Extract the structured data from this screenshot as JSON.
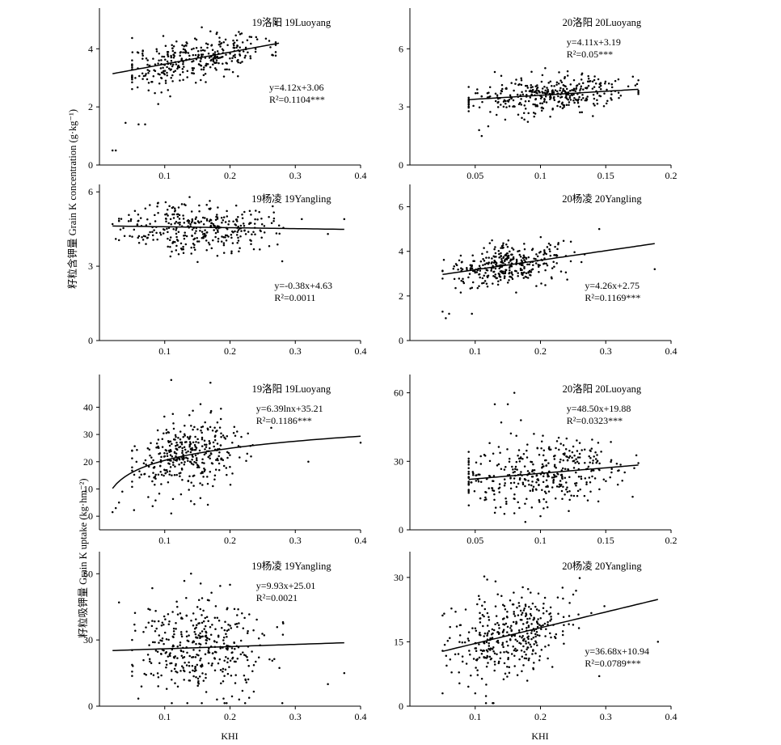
{
  "labels": {
    "y_top": "籽粒含钾量 Grain K concentration (g·kg⁻¹)",
    "y_bottom": "籽粒吸钾量 Grain K uptake (kg·hm⁻²)",
    "x_left": "KHI",
    "x_right": "KHI"
  },
  "chart_data": [
    {
      "type": "scatter",
      "title": "19洛阳 19Luoyang",
      "eq1": "y=4.12x+3.06",
      "eq2": "R²=0.1104***",
      "fit": "linear",
      "slope": 4.12,
      "intercept": 3.06,
      "fit_range": [
        0.02,
        0.275
      ],
      "xlim": [
        0.0,
        0.4
      ],
      "ylim": [
        0,
        5.4
      ],
      "xticks": [
        0.1,
        0.2,
        0.3,
        0.4
      ],
      "yticks": [
        0,
        2,
        4
      ],
      "cluster": {
        "n": 340,
        "cx": 0.145,
        "sx": 0.055,
        "x_range": [
          0.05,
          0.27
        ],
        "sy": 0.38,
        "seed": 11
      },
      "outliers": [
        [
          0.02,
          0.5
        ],
        [
          0.025,
          0.5
        ],
        [
          0.04,
          1.45
        ],
        [
          0.06,
          1.4
        ],
        [
          0.07,
          1.4
        ],
        [
          0.09,
          2.1
        ],
        [
          0.095,
          2.5
        ],
        [
          0.24,
          4.4
        ],
        [
          0.255,
          4.35
        ]
      ],
      "eq_pos": "right-middle"
    },
    {
      "type": "scatter",
      "title": "20洛阳 20Luoyang",
      "eq1": "y=4.11x+3.19",
      "eq2": "R²=0.05***",
      "fit": "linear",
      "slope": 4.11,
      "intercept": 3.19,
      "fit_range": [
        0.045,
        0.175
      ],
      "xlim": [
        0.0,
        0.2
      ],
      "ylim": [
        0,
        8.1
      ],
      "xticks": [
        0.05,
        0.1,
        0.15,
        0.2
      ],
      "yticks": [
        0,
        3,
        6
      ],
      "cluster": {
        "n": 360,
        "cx": 0.105,
        "sx": 0.03,
        "x_range": [
          0.045,
          0.175
        ],
        "sy": 0.45,
        "seed": 23
      },
      "outliers": [
        [
          0.053,
          1.8
        ],
        [
          0.055,
          1.5
        ],
        [
          0.06,
          2.0
        ],
        [
          0.065,
          4.8
        ],
        [
          0.07,
          4.6
        ]
      ],
      "eq_pos": "right-top"
    },
    {
      "type": "scatter",
      "title": "19杨凌 19Yangling",
      "eq1": "y=-0.38x+4.63",
      "eq2": "R²=0.0011",
      "fit": "linear",
      "slope": -0.38,
      "intercept": 4.63,
      "fit_range": [
        0.02,
        0.375
      ],
      "xlim": [
        0.0,
        0.4
      ],
      "ylim": [
        0,
        6.3
      ],
      "xticks": [
        0.1,
        0.2,
        0.3,
        0.4
      ],
      "yticks": [
        0,
        3,
        6
      ],
      "cluster": {
        "n": 340,
        "cx": 0.15,
        "sx": 0.055,
        "x_range": [
          0.03,
          0.3
        ],
        "sy": 0.5,
        "seed": 37
      },
      "outliers": [
        [
          0.28,
          3.2
        ],
        [
          0.31,
          4.9
        ],
        [
          0.35,
          4.3
        ],
        [
          0.375,
          4.9
        ],
        [
          0.02,
          4.7
        ],
        [
          0.025,
          4.1
        ]
      ],
      "eq_pos": "right-bottom"
    },
    {
      "type": "scatter",
      "title": "20杨凌 20Yangling",
      "eq1": "y=4.26x+2.75",
      "eq2": "R²=0.1169***",
      "fit": "linear",
      "slope": 4.26,
      "intercept": 2.75,
      "fit_range": [
        0.05,
        0.375
      ],
      "xlim": [
        0.0,
        0.4
      ],
      "ylim": [
        0,
        7.0
      ],
      "xticks": [
        0.1,
        0.2,
        0.3,
        0.4
      ],
      "yticks": [
        0,
        2,
        4,
        6
      ],
      "cluster": {
        "n": 340,
        "cx": 0.15,
        "sx": 0.045,
        "x_range": [
          0.05,
          0.3
        ],
        "sy": 0.45,
        "seed": 41
      },
      "outliers": [
        [
          0.05,
          1.3
        ],
        [
          0.055,
          1.0
        ],
        [
          0.06,
          1.2
        ],
        [
          0.095,
          1.2
        ],
        [
          0.29,
          5.0
        ],
        [
          0.375,
          3.2
        ]
      ],
      "eq_pos": "right-bottom"
    },
    {
      "type": "scatter",
      "title": "19洛阳 19Luoyang",
      "eq1": "y=6.39lnx+35.21",
      "eq2": "R²=0.1186***",
      "fit": "log",
      "a": 6.39,
      "b": 35.21,
      "fit_range": [
        0.02,
        0.4
      ],
      "xlim": [
        0.0,
        0.4
      ],
      "ylim": [
        -5,
        52
      ],
      "xticks": [
        0.1,
        0.2,
        0.3,
        0.4
      ],
      "yticks": [
        0,
        10,
        20,
        30,
        40
      ],
      "cluster": {
        "n": 360,
        "cx": 0.14,
        "sx": 0.045,
        "x_range": [
          0.05,
          0.3
        ],
        "sy": 6.5,
        "seed": 53
      },
      "outliers": [
        [
          0.02,
          1.5
        ],
        [
          0.025,
          3.0
        ],
        [
          0.03,
          5.0
        ],
        [
          0.035,
          9.0
        ],
        [
          0.11,
          1.0
        ],
        [
          0.32,
          20
        ],
        [
          0.4,
          27
        ],
        [
          0.11,
          50
        ],
        [
          0.17,
          49
        ]
      ],
      "eq_pos": "right-top"
    },
    {
      "type": "scatter",
      "title": "20洛阳 20Luoyang",
      "eq1": "y=48.50x+19.88",
      "eq2": "R²=0.0323***",
      "fit": "linear",
      "slope": 48.5,
      "intercept": 19.88,
      "fit_range": [
        0.045,
        0.175
      ],
      "xlim": [
        0.0,
        0.2
      ],
      "ylim": [
        0,
        68
      ],
      "xticks": [
        0.05,
        0.1,
        0.15,
        0.2
      ],
      "yticks": [
        0,
        30,
        60
      ],
      "cluster": {
        "n": 380,
        "cx": 0.1,
        "sx": 0.032,
        "x_range": [
          0.045,
          0.175
        ],
        "sy": 7,
        "seed": 61
      },
      "outliers": [
        [
          0.08,
          60
        ],
        [
          0.065,
          55
        ],
        [
          0.07,
          47
        ],
        [
          0.075,
          55
        ],
        [
          0.085,
          48
        ],
        [
          0.095,
          42
        ],
        [
          0.1,
          6
        ],
        [
          0.12,
          40
        ]
      ],
      "eq_pos": "right-top"
    },
    {
      "type": "scatter",
      "title": "19杨凌 19Yangling",
      "eq1": "y=9.93x+25.01",
      "eq2": "R²=0.0021",
      "fit": "linear",
      "slope": 9.93,
      "intercept": 25.01,
      "fit_range": [
        0.02,
        0.375
      ],
      "xlim": [
        0.0,
        0.4
      ],
      "ylim": [
        0,
        70
      ],
      "xticks": [
        0.1,
        0.2,
        0.3,
        0.4
      ],
      "yticks": [
        0,
        30,
        60
      ],
      "cluster": {
        "n": 380,
        "cx": 0.16,
        "sx": 0.05,
        "x_range": [
          0.05,
          0.3
        ],
        "sy": 11,
        "seed": 73
      },
      "outliers": [
        [
          0.03,
          47
        ],
        [
          0.05,
          30
        ],
        [
          0.09,
          9
        ],
        [
          0.35,
          10
        ],
        [
          0.375,
          15
        ],
        [
          0.18,
          3
        ],
        [
          0.2,
          55
        ]
      ],
      "eq_pos": "right-top"
    },
    {
      "type": "scatter",
      "title": "20杨凌 20Yangling",
      "eq1": "y=36.68x+10.94",
      "eq2": "R²=0.0789***",
      "fit": "linear",
      "slope": 36.68,
      "intercept": 10.94,
      "fit_range": [
        0.05,
        0.38
      ],
      "xlim": [
        0.0,
        0.4
      ],
      "ylim": [
        0,
        36
      ],
      "xticks": [
        0.1,
        0.2,
        0.3,
        0.4
      ],
      "yticks": [
        0,
        15,
        30
      ],
      "cluster": {
        "n": 380,
        "cx": 0.155,
        "sx": 0.045,
        "x_range": [
          0.05,
          0.3
        ],
        "sy": 5,
        "seed": 89
      },
      "outliers": [
        [
          0.05,
          3
        ],
        [
          0.07,
          22
        ],
        [
          0.1,
          3
        ],
        [
          0.29,
          7
        ],
        [
          0.38,
          15
        ]
      ],
      "eq_pos": "right-bottom"
    }
  ]
}
